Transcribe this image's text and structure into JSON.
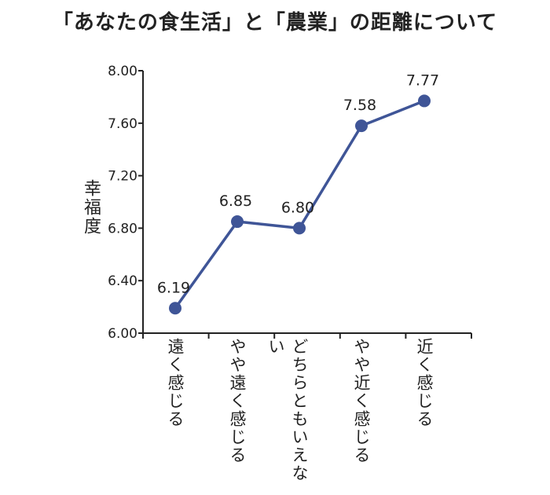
{
  "chart_data": {
    "type": "line",
    "title": "「あなたの食生活」と「農業」の距離について",
    "ylabel": "幸福度",
    "xlabel": "",
    "categories": [
      "遠く感じる",
      "やや遠く感じる",
      "どちらともいえない",
      "やや近く感じる",
      "近く感じる"
    ],
    "values": [
      6.19,
      6.85,
      6.8,
      7.58,
      7.77
    ],
    "data_labels": [
      "6.19",
      "6.85",
      "6.80",
      "7.58",
      "7.77"
    ],
    "ylim": [
      6.0,
      8.0
    ],
    "yticks": [
      "6.00",
      "6.40",
      "6.80",
      "7.20",
      "7.60",
      "8.00"
    ],
    "grid": false,
    "colors": {
      "line": "#3f5597",
      "axis": "#222222"
    }
  }
}
